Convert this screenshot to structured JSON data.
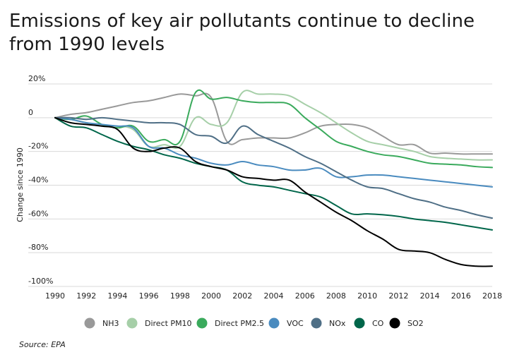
{
  "chart_data": {
    "type": "line",
    "title": "Emissions of key air pollutants continue to decline from 1990 levels",
    "ylabel": "Change since 1990",
    "xlabel": "",
    "x": [
      1990,
      1991,
      1992,
      1993,
      1994,
      1995,
      1996,
      1997,
      1998,
      1999,
      2000,
      2001,
      2002,
      2003,
      2004,
      2005,
      2006,
      2007,
      2008,
      2009,
      2010,
      2011,
      2012,
      2013,
      2014,
      2015,
      2016,
      2017,
      2018
    ],
    "xticks": [
      1990,
      1992,
      1994,
      1996,
      1998,
      2000,
      2002,
      2004,
      2006,
      2008,
      2010,
      2012,
      2014,
      2016,
      2018
    ],
    "xtick_labels": [
      "1990",
      "1992",
      "1994",
      "1996",
      "1998",
      "2000",
      "2002",
      "2004",
      "2006",
      "2008",
      "2010",
      "2012",
      "2014",
      "2016",
      "2018"
    ],
    "yticks": [
      20,
      0,
      -20,
      -40,
      -60,
      -80,
      -100
    ],
    "ytick_labels": [
      "20%",
      "0",
      "-20%",
      "-40%",
      "-60%",
      "-80%",
      "-100%"
    ],
    "ylim": [
      -100,
      20
    ],
    "xlim": [
      1990,
      2018
    ],
    "grid": "horizontal",
    "legend_position": "bottom",
    "series": [
      {
        "name": "NH3",
        "color": "#999999",
        "values": [
          0,
          2,
          3,
          5,
          7,
          9,
          10,
          12,
          14,
          13,
          12,
          -14,
          -13,
          -12,
          -12,
          -12,
          -9,
          -5,
          -4,
          -4,
          -6,
          -11,
          -16,
          -16,
          -21,
          -21,
          -21.5,
          -21.5,
          -21.5
        ]
      },
      {
        "name": "Direct PM10",
        "color": "#a6cfa8",
        "values": [
          0,
          -1,
          -3,
          -5,
          -5,
          -7,
          -17,
          -16,
          -17,
          0,
          -4,
          -3,
          15,
          14,
          14,
          13,
          8,
          3,
          -3,
          -9,
          -14,
          -16,
          -18,
          -20,
          -23,
          -24,
          -24.5,
          -25,
          -25
        ]
      },
      {
        "name": "Direct PM2.5",
        "color": "#3aaa5c",
        "values": [
          0,
          -1,
          1,
          -4,
          -6,
          -5,
          -14,
          -13,
          -14,
          15,
          11,
          12,
          10,
          9,
          9,
          8,
          0,
          -7,
          -14,
          -17,
          -20,
          -22,
          -23,
          -25,
          -27,
          -27.5,
          -28,
          -29,
          -29.5
        ]
      },
      {
        "name": "VOC",
        "color": "#4a8bbf",
        "values": [
          0,
          -1,
          -3,
          -4,
          -5,
          -6,
          -17,
          -18,
          -22,
          -24,
          -27,
          -28,
          -26,
          -28,
          -29,
          -31,
          -31,
          -30,
          -35,
          -35,
          -34,
          -34,
          -35,
          -36,
          -37,
          -38,
          -39,
          -40,
          -41
        ]
      },
      {
        "name": "NOx",
        "color": "#4f6f86",
        "values": [
          0,
          0,
          -1,
          0,
          -1,
          -2,
          -3,
          -3,
          -4,
          -10,
          -11,
          -15,
          -5,
          -10,
          -14,
          -18,
          -23,
          -27,
          -32,
          -37,
          -41,
          -42,
          -45,
          -48,
          -50,
          -53,
          -55,
          -57.5,
          -59.5
        ]
      },
      {
        "name": "CO",
        "color": "#00664a",
        "values": [
          0,
          -5,
          -6,
          -10,
          -14,
          -17,
          -19,
          -22,
          -24,
          -27,
          -29,
          -31,
          -38,
          -40,
          -41,
          -43,
          -45,
          -47,
          -52,
          -57,
          -57,
          -57.5,
          -58.5,
          -60,
          -61,
          -62,
          -63.5,
          -65,
          -66.5
        ]
      },
      {
        "name": "SO2",
        "color": "#000000",
        "values": [
          0,
          -3,
          -4,
          -5,
          -7,
          -18,
          -20,
          -18,
          -18,
          -26,
          -29,
          -31,
          -35,
          -36,
          -37,
          -37,
          -44,
          -50,
          -56,
          -61,
          -67,
          -72,
          -78,
          -79,
          -80,
          -84,
          -87,
          -88,
          -88
        ]
      }
    ]
  },
  "source": "Source: EPA"
}
